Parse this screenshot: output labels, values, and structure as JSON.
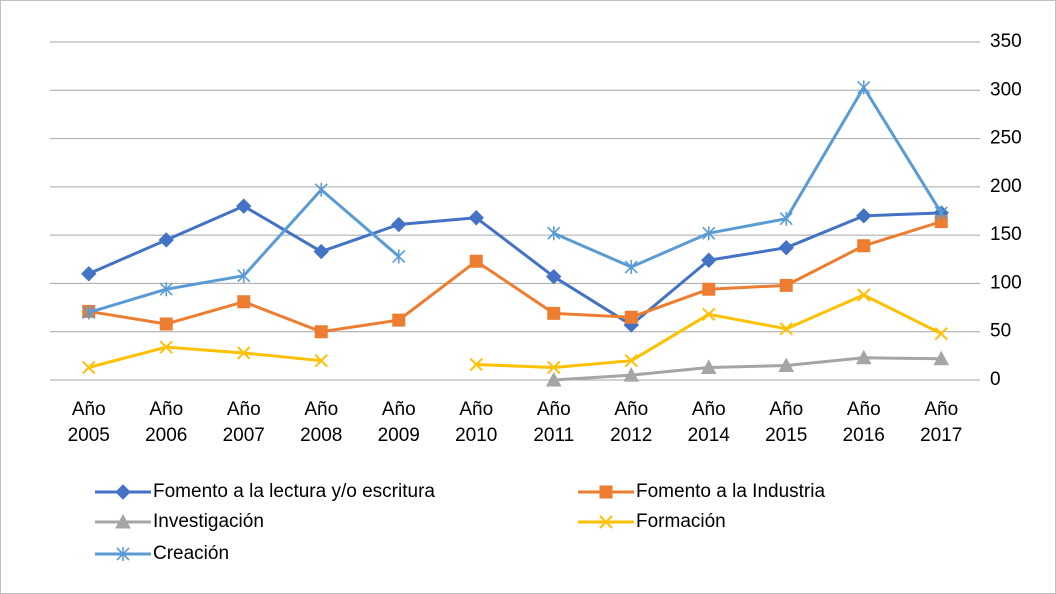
{
  "chart_data": {
    "type": "line",
    "categories": [
      "Año 2005",
      "Año 2006",
      "Año 2007",
      "Año 2008",
      "Año 2009",
      "Año 2010",
      "Año 2011",
      "Año 2012",
      "Año 2014",
      "Año 2015",
      "Año 2016",
      "Año 2017"
    ],
    "series": [
      {
        "name": "Fomento a la lectura y/o escritura",
        "color": "#4472c4",
        "marker": "diamond",
        "values": [
          110,
          145,
          180,
          133,
          161,
          168,
          107,
          57,
          124,
          137,
          170,
          173
        ]
      },
      {
        "name": "Fomento a la Industria",
        "color": "#ed7d31",
        "marker": "square",
        "values": [
          71,
          58,
          81,
          50,
          62,
          123,
          69,
          65,
          94,
          98,
          139,
          164
        ]
      },
      {
        "name": "Investigación",
        "color": "#a5a5a5",
        "marker": "triangle",
        "values": [
          null,
          null,
          null,
          null,
          null,
          null,
          0,
          5,
          13,
          15,
          23,
          22
        ]
      },
      {
        "name": "Formación",
        "color": "#ffc000",
        "marker": "x",
        "values": [
          13,
          34,
          28,
          20,
          null,
          16,
          13,
          20,
          68,
          53,
          88,
          48
        ]
      },
      {
        "name": "Creación",
        "color": "#5b9bd5",
        "marker": "star",
        "values": [
          70,
          94,
          108,
          197,
          128,
          null,
          152,
          117,
          152,
          167,
          303,
          173
        ]
      }
    ],
    "ylim": [
      0,
      350
    ],
    "yticks": [
      0,
      50,
      100,
      150,
      200,
      250,
      300,
      350
    ],
    "y_axis_side": "right",
    "grid": true,
    "legend": "bottom"
  }
}
